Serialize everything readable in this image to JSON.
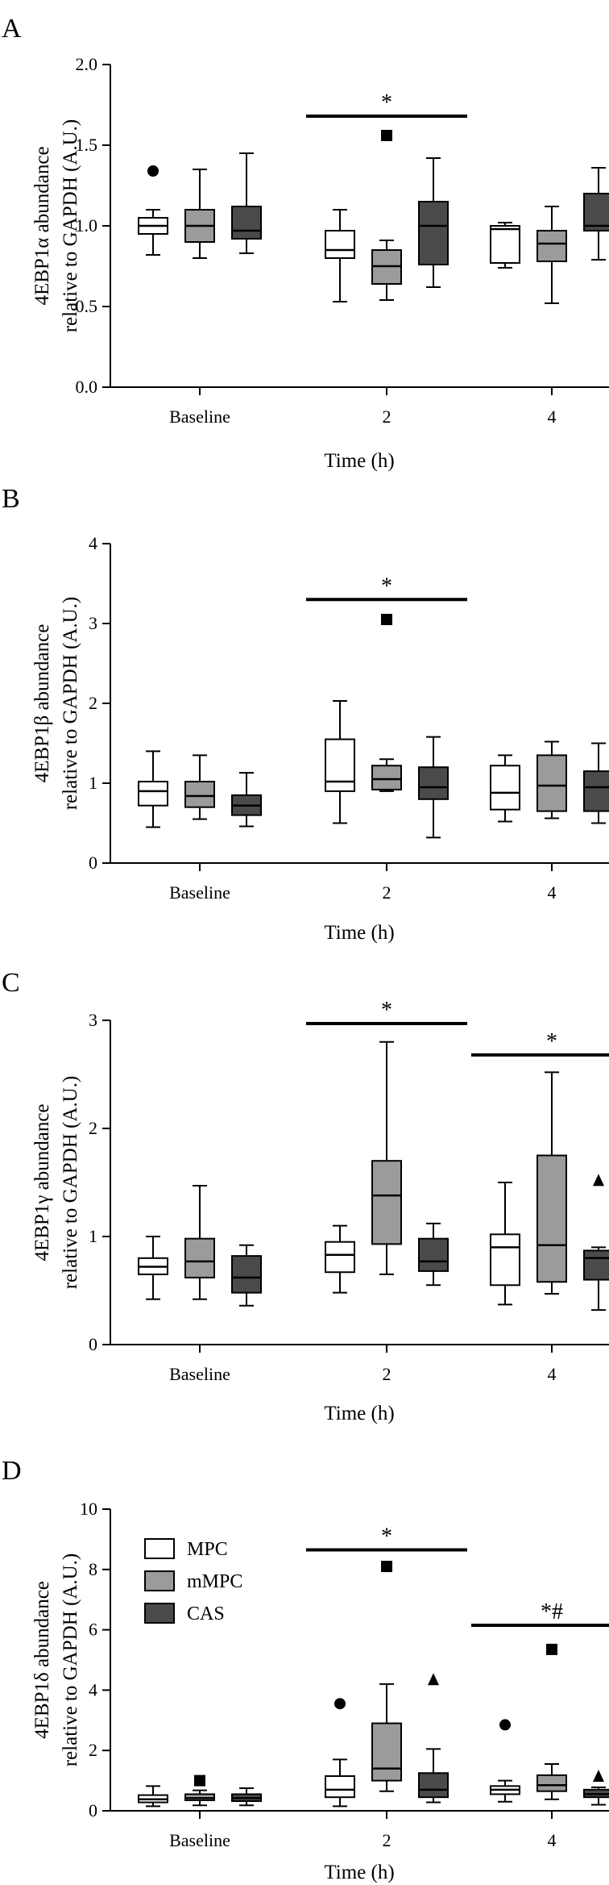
{
  "figure": {
    "legend": {
      "entries": [
        {
          "label": "MPC",
          "color": "#ffffff"
        },
        {
          "label": "mMPC",
          "color": "#9b9b9b"
        },
        {
          "label": "CAS",
          "color": "#4a4a4a"
        }
      ]
    }
  },
  "chart_data": [
    {
      "type": "box",
      "panel_label": "A",
      "ylabel_line1": "4EBP1α abundance",
      "ylabel_line2": "relative to GAPDH (A.U.)",
      "xlabel": "Time (h)",
      "ylim": [
        0,
        2.0
      ],
      "yticks": [
        0.0,
        0.5,
        1.0,
        1.5,
        2.0
      ],
      "ytick_labels": [
        "0.0",
        "0.5",
        "1.0",
        "1.5",
        "2.0"
      ],
      "categories": [
        "Baseline",
        "2",
        "4"
      ],
      "series": [
        {
          "name": "MPC",
          "color": "#ffffff",
          "boxes": [
            {
              "min": 0.82,
              "q1": 0.95,
              "median": 1.0,
              "q3": 1.05,
              "max": 1.1,
              "outliers": [
                {
                  "value": 1.34,
                  "marker": "circle"
                }
              ]
            },
            {
              "min": 0.53,
              "q1": 0.8,
              "median": 0.85,
              "q3": 0.97,
              "max": 1.1,
              "outliers": []
            },
            {
              "min": 0.74,
              "q1": 0.77,
              "median": 0.98,
              "q3": 1.0,
              "max": 1.02,
              "outliers": []
            }
          ]
        },
        {
          "name": "mMPC",
          "color": "#9b9b9b",
          "boxes": [
            {
              "min": 0.8,
              "q1": 0.9,
              "median": 1.0,
              "q3": 1.1,
              "max": 1.35,
              "outliers": []
            },
            {
              "min": 0.54,
              "q1": 0.64,
              "median": 0.75,
              "q3": 0.85,
              "max": 0.91,
              "outliers": [
                {
                  "value": 1.56,
                  "marker": "square"
                }
              ]
            },
            {
              "min": 0.52,
              "q1": 0.78,
              "median": 0.89,
              "q3": 0.97,
              "max": 1.12,
              "outliers": []
            }
          ]
        },
        {
          "name": "CAS",
          "color": "#4a4a4a",
          "boxes": [
            {
              "min": 0.83,
              "q1": 0.92,
              "median": 0.97,
              "q3": 1.12,
              "max": 1.45,
              "outliers": []
            },
            {
              "min": 0.62,
              "q1": 0.76,
              "median": 1.0,
              "q3": 1.15,
              "max": 1.42,
              "outliers": []
            },
            {
              "min": 0.79,
              "q1": 0.97,
              "median": 1.0,
              "q3": 1.2,
              "max": 1.36,
              "outliers": []
            }
          ]
        }
      ],
      "significance": [
        {
          "category_index": 1,
          "label": "*",
          "level": 1.68
        }
      ]
    },
    {
      "type": "box",
      "panel_label": "B",
      "ylabel_line1": "4EBP1β abundance",
      "ylabel_line2": "relative to GAPDH (A.U.)",
      "xlabel": "Time (h)",
      "ylim": [
        0,
        4
      ],
      "yticks": [
        0,
        1,
        2,
        3,
        4
      ],
      "ytick_labels": [
        "0",
        "1",
        "2",
        "3",
        "4"
      ],
      "categories": [
        "Baseline",
        "2",
        "4"
      ],
      "series": [
        {
          "name": "MPC",
          "color": "#ffffff",
          "boxes": [
            {
              "min": 0.45,
              "q1": 0.72,
              "median": 0.9,
              "q3": 1.02,
              "max": 1.4,
              "outliers": []
            },
            {
              "min": 0.5,
              "q1": 0.9,
              "median": 1.02,
              "q3": 1.55,
              "max": 2.03,
              "outliers": []
            },
            {
              "min": 0.52,
              "q1": 0.67,
              "median": 0.88,
              "q3": 1.22,
              "max": 1.35,
              "outliers": []
            }
          ]
        },
        {
          "name": "mMPC",
          "color": "#9b9b9b",
          "boxes": [
            {
              "min": 0.55,
              "q1": 0.7,
              "median": 0.84,
              "q3": 1.02,
              "max": 1.35,
              "outliers": []
            },
            {
              "min": 0.9,
              "q1": 0.92,
              "median": 1.05,
              "q3": 1.22,
              "max": 1.3,
              "outliers": [
                {
                  "value": 3.05,
                  "marker": "square"
                }
              ]
            },
            {
              "min": 0.56,
              "q1": 0.65,
              "median": 0.97,
              "q3": 1.35,
              "max": 1.52,
              "outliers": []
            }
          ]
        },
        {
          "name": "CAS",
          "color": "#4a4a4a",
          "boxes": [
            {
              "min": 0.46,
              "q1": 0.6,
              "median": 0.72,
              "q3": 0.85,
              "max": 1.13,
              "outliers": []
            },
            {
              "min": 0.32,
              "q1": 0.8,
              "median": 0.95,
              "q3": 1.2,
              "max": 1.58,
              "outliers": []
            },
            {
              "min": 0.5,
              "q1": 0.65,
              "median": 0.95,
              "q3": 1.15,
              "max": 1.5,
              "outliers": []
            }
          ]
        }
      ],
      "significance": [
        {
          "category_index": 1,
          "label": "*",
          "level": 3.3
        }
      ]
    },
    {
      "type": "box",
      "panel_label": "C",
      "ylabel_line1": "4EBP1γ abundance",
      "ylabel_line2": "relative to GAPDH (A.U.)",
      "xlabel": "Time (h)",
      "ylim": [
        0,
        3
      ],
      "yticks": [
        0,
        1,
        2,
        3
      ],
      "ytick_labels": [
        "0",
        "1",
        "2",
        "3"
      ],
      "categories": [
        "Baseline",
        "2",
        "4"
      ],
      "series": [
        {
          "name": "MPC",
          "color": "#ffffff",
          "boxes": [
            {
              "min": 0.42,
              "q1": 0.65,
              "median": 0.72,
              "q3": 0.8,
              "max": 1.0,
              "outliers": []
            },
            {
              "min": 0.48,
              "q1": 0.67,
              "median": 0.83,
              "q3": 0.95,
              "max": 1.1,
              "outliers": []
            },
            {
              "min": 0.37,
              "q1": 0.55,
              "median": 0.9,
              "q3": 1.02,
              "max": 1.5,
              "outliers": []
            }
          ]
        },
        {
          "name": "mMPC",
          "color": "#9b9b9b",
          "boxes": [
            {
              "min": 0.42,
              "q1": 0.62,
              "median": 0.77,
              "q3": 0.98,
              "max": 1.47,
              "outliers": []
            },
            {
              "min": 0.65,
              "q1": 0.93,
              "median": 1.38,
              "q3": 1.7,
              "max": 2.8,
              "outliers": []
            },
            {
              "min": 0.47,
              "q1": 0.58,
              "median": 0.92,
              "q3": 1.75,
              "max": 2.52,
              "outliers": []
            }
          ]
        },
        {
          "name": "CAS",
          "color": "#4a4a4a",
          "boxes": [
            {
              "min": 0.36,
              "q1": 0.48,
              "median": 0.62,
              "q3": 0.82,
              "max": 0.92,
              "outliers": []
            },
            {
              "min": 0.55,
              "q1": 0.68,
              "median": 0.77,
              "q3": 0.98,
              "max": 1.12,
              "outliers": []
            },
            {
              "min": 0.32,
              "q1": 0.6,
              "median": 0.8,
              "q3": 0.87,
              "max": 0.9,
              "outliers": [
                {
                  "value": 1.52,
                  "marker": "triangle"
                }
              ]
            }
          ]
        }
      ],
      "significance": [
        {
          "category_index": 1,
          "label": "*",
          "level": 2.97
        },
        {
          "category_index": 2,
          "label": "*",
          "level": 2.68
        }
      ]
    },
    {
      "type": "box",
      "panel_label": "D",
      "ylabel_line1": "4EBP1δ abundance",
      "ylabel_line2": "relative to GAPDH (A.U.)",
      "xlabel": "Time (h)",
      "ylim": [
        0,
        10
      ],
      "yticks": [
        0,
        2,
        4,
        6,
        8,
        10
      ],
      "ytick_labels": [
        "0",
        "2",
        "4",
        "6",
        "8",
        "10"
      ],
      "categories": [
        "Baseline",
        "2",
        "4"
      ],
      "series": [
        {
          "name": "MPC",
          "color": "#ffffff",
          "boxes": [
            {
              "min": 0.15,
              "q1": 0.28,
              "median": 0.38,
              "q3": 0.52,
              "max": 0.82,
              "outliers": []
            },
            {
              "min": 0.15,
              "q1": 0.45,
              "median": 0.7,
              "q3": 1.15,
              "max": 1.7,
              "outliers": [
                {
                  "value": 3.55,
                  "marker": "circle"
                }
              ]
            },
            {
              "min": 0.3,
              "q1": 0.55,
              "median": 0.7,
              "q3": 0.82,
              "max": 1.0,
              "outliers": [
                {
                  "value": 2.85,
                  "marker": "circle"
                }
              ]
            }
          ]
        },
        {
          "name": "mMPC",
          "color": "#9b9b9b",
          "boxes": [
            {
              "min": 0.18,
              "q1": 0.35,
              "median": 0.42,
              "q3": 0.55,
              "max": 0.68,
              "outliers": [
                {
                  "value": 1.0,
                  "marker": "square"
                }
              ]
            },
            {
              "min": 0.65,
              "q1": 1.0,
              "median": 1.4,
              "q3": 2.9,
              "max": 4.2,
              "outliers": [
                {
                  "value": 8.1,
                  "marker": "square"
                }
              ]
            },
            {
              "min": 0.38,
              "q1": 0.65,
              "median": 0.85,
              "q3": 1.18,
              "max": 1.55,
              "outliers": [
                {
                  "value": 5.35,
                  "marker": "square"
                }
              ]
            }
          ]
        },
        {
          "name": "CAS",
          "color": "#4a4a4a",
          "boxes": [
            {
              "min": 0.18,
              "q1": 0.32,
              "median": 0.42,
              "q3": 0.55,
              "max": 0.75,
              "outliers": []
            },
            {
              "min": 0.28,
              "q1": 0.45,
              "median": 0.7,
              "q3": 1.25,
              "max": 2.05,
              "outliers": [
                {
                  "value": 4.35,
                  "marker": "triangle"
                }
              ]
            },
            {
              "min": 0.2,
              "q1": 0.45,
              "median": 0.55,
              "q3": 0.7,
              "max": 0.78,
              "outliers": [
                {
                  "value": 1.15,
                  "marker": "triangle"
                }
              ]
            }
          ]
        }
      ],
      "significance": [
        {
          "category_index": 1,
          "label": "*",
          "level": 8.65
        },
        {
          "category_index": 2,
          "label": "*#",
          "level": 6.15
        }
      ]
    }
  ]
}
